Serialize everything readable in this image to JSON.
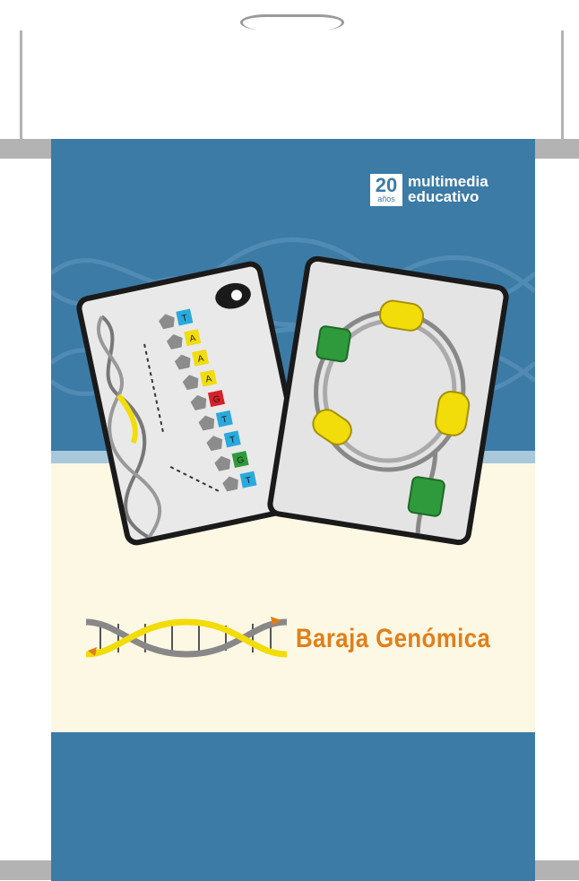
{
  "brand": {
    "badge_number": "20",
    "badge_sub": "años",
    "name_line1": "multimedia",
    "name_line2": "educativo"
  },
  "product": {
    "title": "Baraja Genómica"
  },
  "card_left": {
    "nucleotides": [
      "T",
      "A",
      "A",
      "A",
      "G",
      "T",
      "T",
      "G",
      "T"
    ]
  },
  "colors": {
    "panel_blue": "#3c7ba6",
    "cream": "#fdf8e4",
    "title_orange": "#e07f1a",
    "yellow": "#f2dc0a",
    "cyan": "#2aa9dc",
    "red": "#d6202a",
    "green": "#2f9a3c"
  },
  "icons": [
    "hanger-hole",
    "dna-helix-icon",
    "camera-icon"
  ]
}
